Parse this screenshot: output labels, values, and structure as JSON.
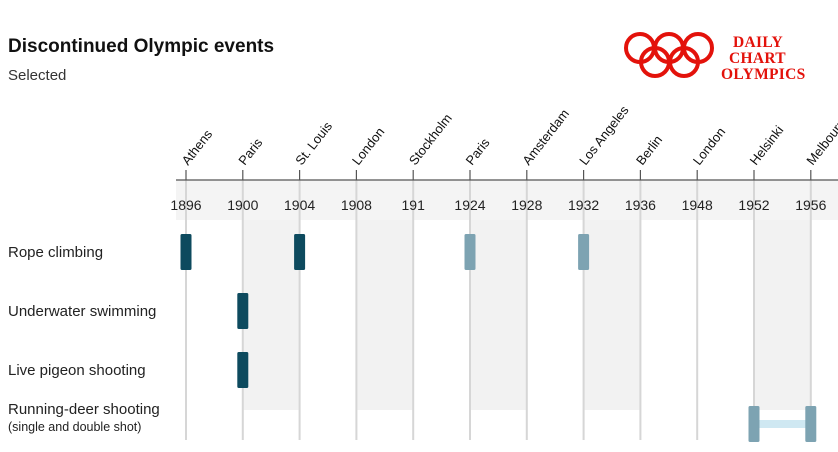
{
  "title": "Discontinued Olympic events",
  "subtitle": "Selected",
  "logo": {
    "line1": "DAILY",
    "line2": "CHART",
    "line3": "OLYMPICS",
    "color": "#e3120b"
  },
  "colors": {
    "active": "#0d4a5e",
    "faded": "#7da3b2",
    "connector": "#cfe8f2",
    "rings": "#e3120b"
  },
  "chart_data": {
    "type": "timeline",
    "title": "Discontinued Olympic events",
    "subtitle": "Selected",
    "games": [
      {
        "year": "1896",
        "city": "Athens"
      },
      {
        "year": "1900",
        "city": "Paris"
      },
      {
        "year": "1904",
        "city": "St. Louis"
      },
      {
        "year": "1908",
        "city": "London"
      },
      {
        "year": "191",
        "city": "Stockholm"
      },
      {
        "year": "1924",
        "city": "Paris"
      },
      {
        "year": "1928",
        "city": "Amsterdam"
      },
      {
        "year": "1932",
        "city": "Los Angeles"
      },
      {
        "year": "1936",
        "city": "Berlin"
      },
      {
        "year": "1948",
        "city": "London"
      },
      {
        "year": "1952",
        "city": "Helsinki"
      },
      {
        "year": "1956",
        "city": "Melbourne"
      }
    ],
    "events": [
      {
        "name": "Rope climbing",
        "note": "",
        "held": [
          "1896",
          "1904",
          "1924",
          "1932"
        ],
        "connected": false
      },
      {
        "name": "Underwater swimming",
        "note": "",
        "held": [
          "1900"
        ],
        "connected": false
      },
      {
        "name": "Live pigeon shooting",
        "note": "",
        "held": [
          "1900"
        ],
        "connected": false
      },
      {
        "name": "Running-deer shooting",
        "note": "(single and double shot)",
        "held": [
          "1952",
          "1956"
        ],
        "connected": true
      }
    ]
  }
}
